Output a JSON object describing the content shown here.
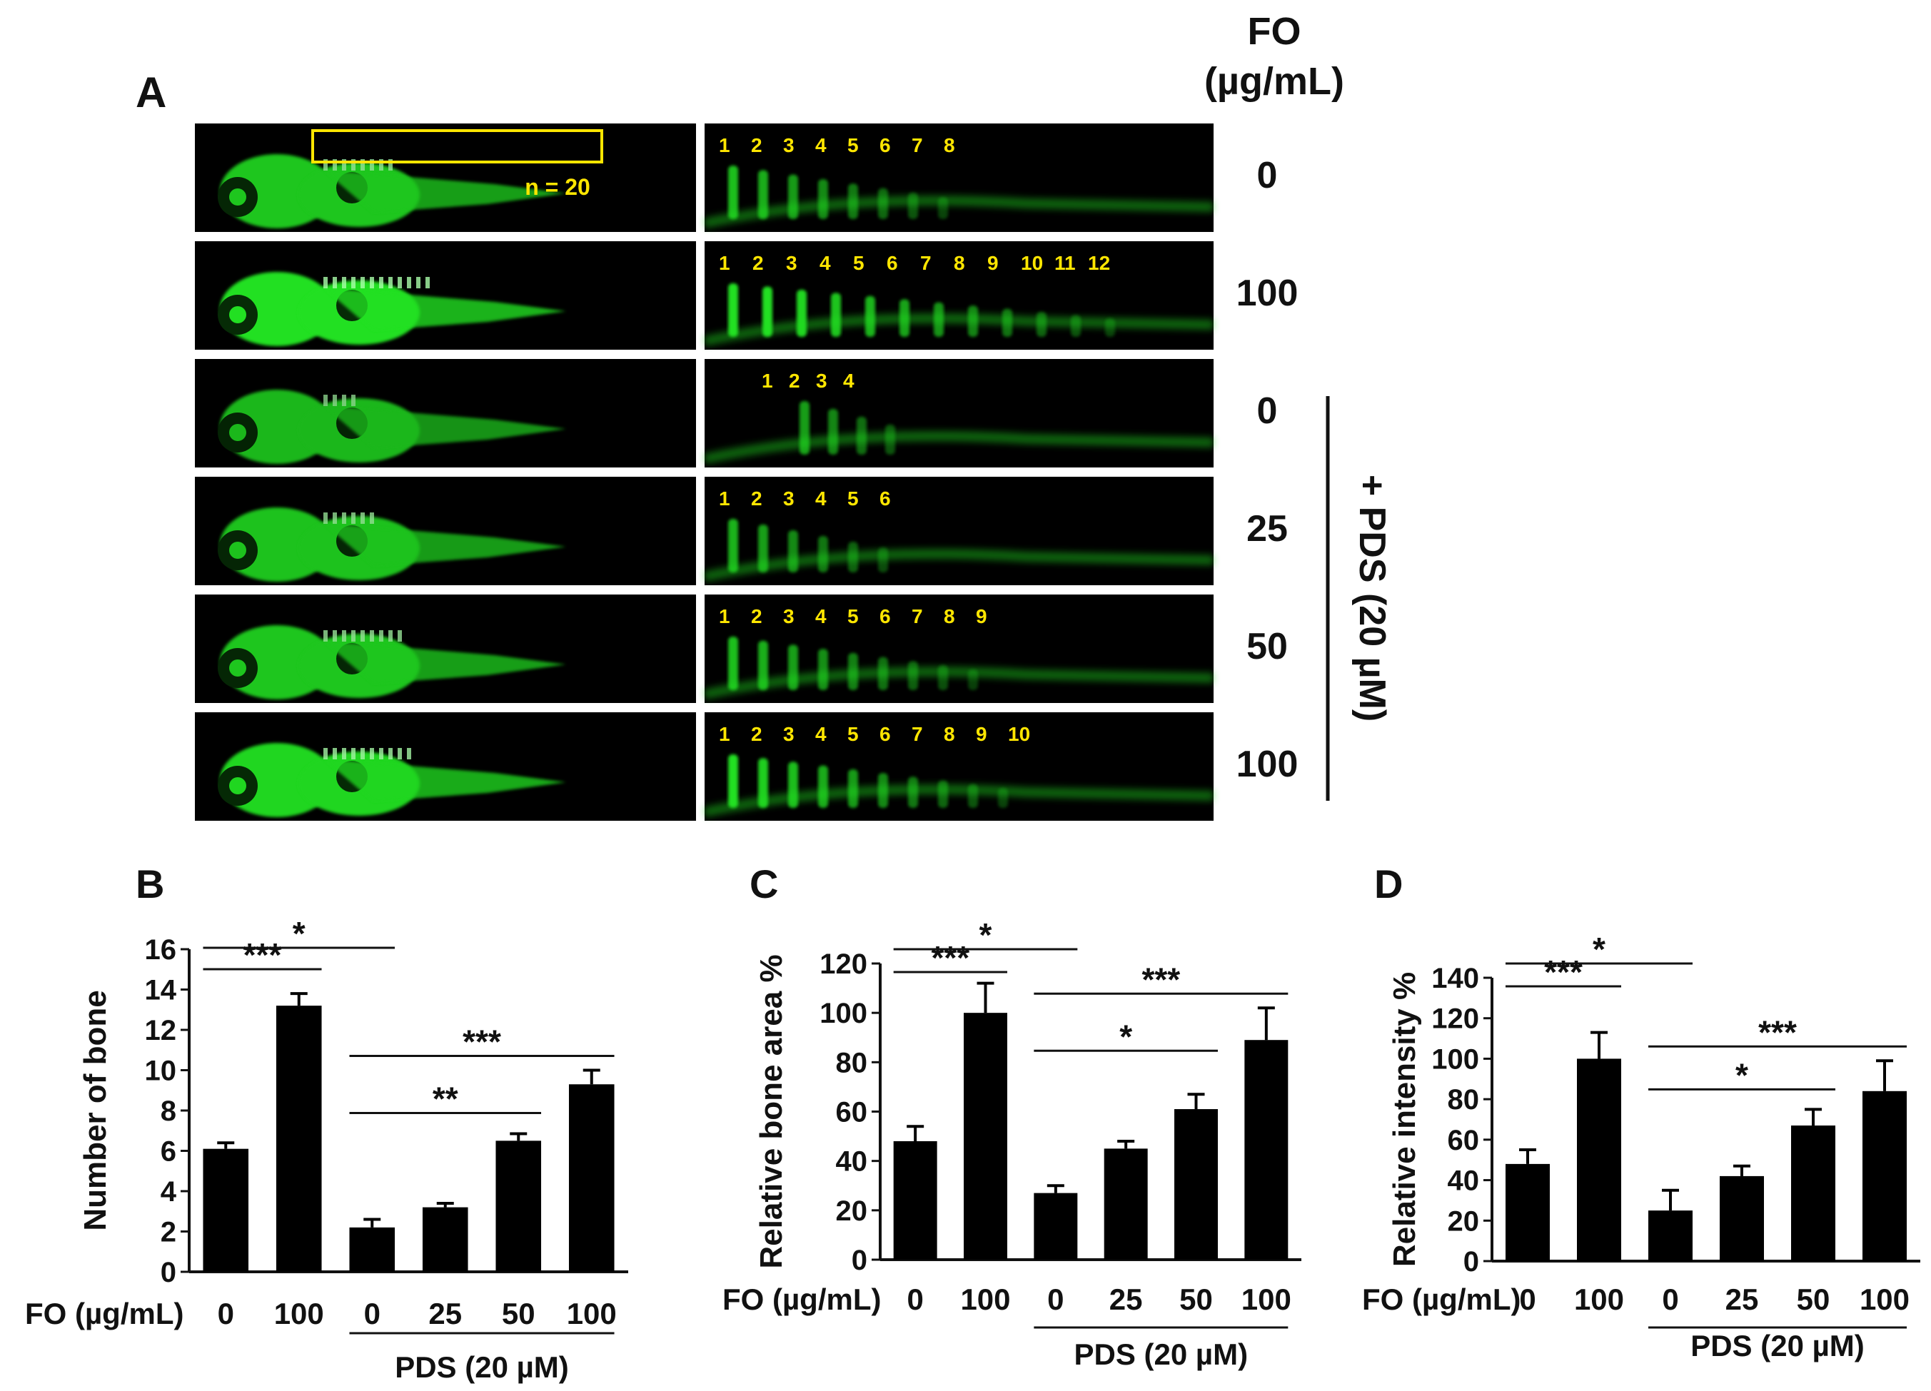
{
  "panel_a": {
    "label": "A",
    "header": "FO",
    "header_unit": "(µg/mL)",
    "n_label": "n = 20",
    "treatment_label": "+ PDS (20 µM)",
    "rows": [
      {
        "dose": "0",
        "bones": [
          "1",
          "2",
          "3",
          "4",
          "5",
          "6",
          "7",
          "8"
        ]
      },
      {
        "dose": "100",
        "bones": [
          "1",
          "2",
          "3",
          "4",
          "5",
          "6",
          "7",
          "8",
          "9",
          "10",
          "11",
          "12"
        ]
      },
      {
        "dose": "0",
        "bones": [
          "1",
          "2",
          "3",
          "4"
        ]
      },
      {
        "dose": "25",
        "bones": [
          "1",
          "2",
          "3",
          "4",
          "5",
          "6"
        ]
      },
      {
        "dose": "50",
        "bones": [
          "1",
          "2",
          "3",
          "4",
          "5",
          "6",
          "7",
          "8",
          "9"
        ]
      },
      {
        "dose": "100",
        "bones": [
          "1",
          "2",
          "3",
          "4",
          "5",
          "6",
          "7",
          "8",
          "9",
          "10"
        ]
      }
    ],
    "colors": {
      "fluor": "#22e022",
      "label": "#ffe600",
      "bg": "#000000"
    }
  },
  "chart_data": [
    {
      "type": "bar",
      "panel": "B",
      "ylabel": "Number of bone",
      "ylim": [
        0,
        16
      ],
      "yticks": [
        "0",
        "2",
        "4",
        "6",
        "8",
        "10",
        "12",
        "14",
        "16"
      ],
      "fo_label": "FO (µg/mL)",
      "categories": [
        "0",
        "100",
        "0",
        "25",
        "50",
        "100"
      ],
      "values": [
        6.1,
        13.2,
        2.2,
        3.2,
        6.5,
        9.3
      ],
      "errors": [
        0.3,
        0.6,
        0.4,
        0.2,
        0.35,
        0.7
      ],
      "group_label": "PDS (20 µM)",
      "significance": [
        {
          "label": "***",
          "from": 0,
          "to": 1
        },
        {
          "label": "*",
          "from": 0,
          "to": 2
        },
        {
          "label": "**",
          "from": 2,
          "to": 4
        },
        {
          "label": "***",
          "from": 2,
          "to": 5
        }
      ]
    },
    {
      "type": "bar",
      "panel": "C",
      "ylabel": "Relative bone area %",
      "ylim": [
        0,
        120
      ],
      "yticks": [
        "0",
        "20",
        "40",
        "60",
        "80",
        "100",
        "120"
      ],
      "fo_label": "FO (µg/mL)",
      "categories": [
        "0",
        "100",
        "0",
        "25",
        "50",
        "100"
      ],
      "values": [
        48,
        100,
        27,
        45,
        61,
        89
      ],
      "errors": [
        6,
        12,
        3,
        3,
        6,
        13
      ],
      "group_label": "PDS (20 µM)",
      "significance": [
        {
          "label": "***",
          "from": 0,
          "to": 1
        },
        {
          "label": "*",
          "from": 0,
          "to": 2
        },
        {
          "label": "*",
          "from": 2,
          "to": 4
        },
        {
          "label": "***",
          "from": 2,
          "to": 5
        }
      ]
    },
    {
      "type": "bar",
      "panel": "D",
      "ylabel": "Relative intensity %",
      "ylim": [
        0,
        140
      ],
      "yticks": [
        "0",
        "20",
        "40",
        "60",
        "80",
        "100",
        "120",
        "140"
      ],
      "fo_label": "FO (µg/mL)",
      "categories": [
        "0",
        "100",
        "0",
        "25",
        "50",
        "100"
      ],
      "values": [
        48,
        100,
        25,
        42,
        67,
        84
      ],
      "errors": [
        7,
        13,
        10,
        5,
        8,
        15
      ],
      "group_label": "PDS (20 µM)",
      "significance": [
        {
          "label": "***",
          "from": 0,
          "to": 1
        },
        {
          "label": "*",
          "from": 0,
          "to": 2
        },
        {
          "label": "*",
          "from": 2,
          "to": 4
        },
        {
          "label": "***",
          "from": 2,
          "to": 5
        }
      ]
    }
  ]
}
